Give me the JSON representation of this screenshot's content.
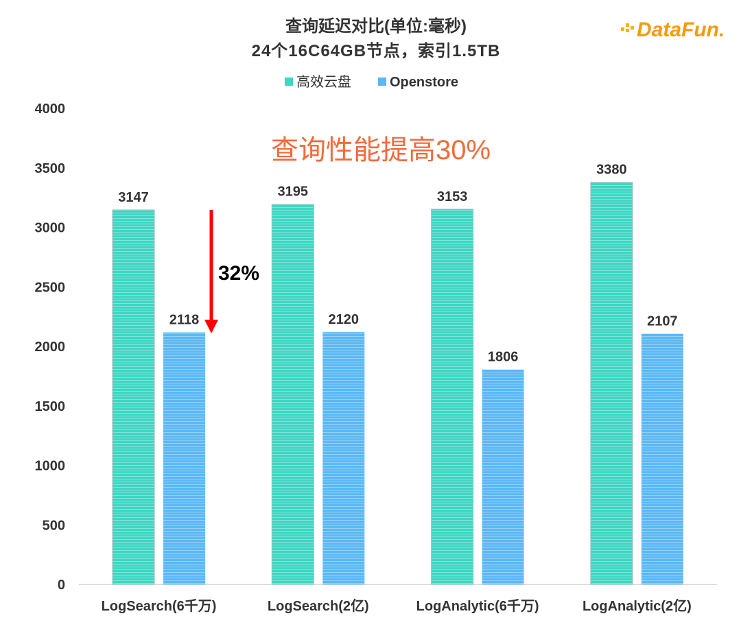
{
  "chart_data": {
    "type": "bar",
    "title": "查询延迟对比(单位:毫秒)",
    "subtitle": "24个16C64GB节点，索引1.5TB",
    "categories": [
      "LogSearch(6千万)",
      "LogSearch(2亿)",
      "LogAnalytic(6千万)",
      "LogAnalytic(2亿)"
    ],
    "series": [
      {
        "name": "高效云盘",
        "values": [
          3147,
          3195,
          3153,
          3380
        ],
        "color": "#3FD6C3"
      },
      {
        "name": "Openstore",
        "values": [
          2118,
          2120,
          1806,
          2107
        ],
        "color": "#5BB8F5"
      }
    ],
    "ylim": [
      0,
      4000
    ],
    "yticks": [
      0,
      500,
      1000,
      1500,
      2000,
      2500,
      3000,
      3500,
      4000
    ],
    "legend_position": "top",
    "grid": false,
    "annotations": {
      "headline": "查询性能提高30%",
      "headline_color": "#F26B3A",
      "arrow_label": "32%",
      "arrow_color": "#FF0000"
    }
  },
  "logo": "DataFun."
}
